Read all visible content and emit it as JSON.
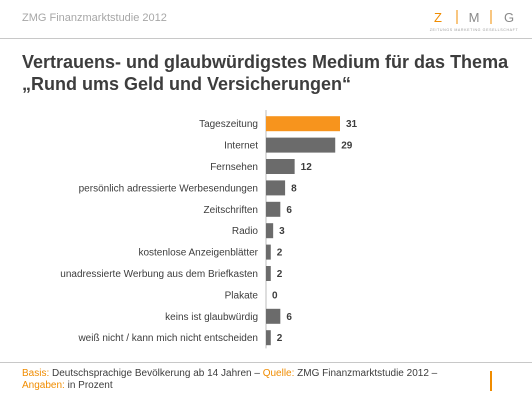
{
  "header": {
    "study_label": "ZMG Finanzmarktstudie 2012",
    "logo_letters": [
      "Z",
      "M",
      "G"
    ],
    "logo_tagline": "ZEITUNGS MARKETING GESELLSCHAFT"
  },
  "title_line1": "Vertrauens- und glaubwürdigstes Medium für das Thema",
  "title_line2": "„Rund ums Geld und Versicherungen“",
  "chart_data": {
    "type": "bar",
    "orientation": "horizontal",
    "categories": [
      "Tageszeitung",
      "Internet",
      "Fernsehen",
      "persönlich adressierte Werbesendungen",
      "Zeitschriften",
      "Radio",
      "kostenlose Anzeigenblätter",
      "unadressierte Werbung aus dem Briefkasten",
      "Plakate",
      "keins ist glaubwürdig",
      "weiß nicht / kann mich nicht entscheiden"
    ],
    "values": [
      31,
      29,
      12,
      8,
      6,
      3,
      2,
      2,
      0,
      6,
      2
    ],
    "highlight_index": 0,
    "xlim": [
      0,
      31
    ],
    "grid": false,
    "legend": "none"
  },
  "colors": {
    "highlight_bar": "#f7941d",
    "bar": "#6b6b6b",
    "accent": "#f08c00",
    "text": "#3d3d3d"
  },
  "footer": {
    "basis_label": "Basis:",
    "basis_text": " Deutschsprachige Bevölkerung ab 14 Jahren – ",
    "source_label": "Quelle:",
    "source_text": " ZMG Finanzmarktstudie 2012  –",
    "data_label": "Angaben:",
    "data_text": " in Prozent"
  }
}
